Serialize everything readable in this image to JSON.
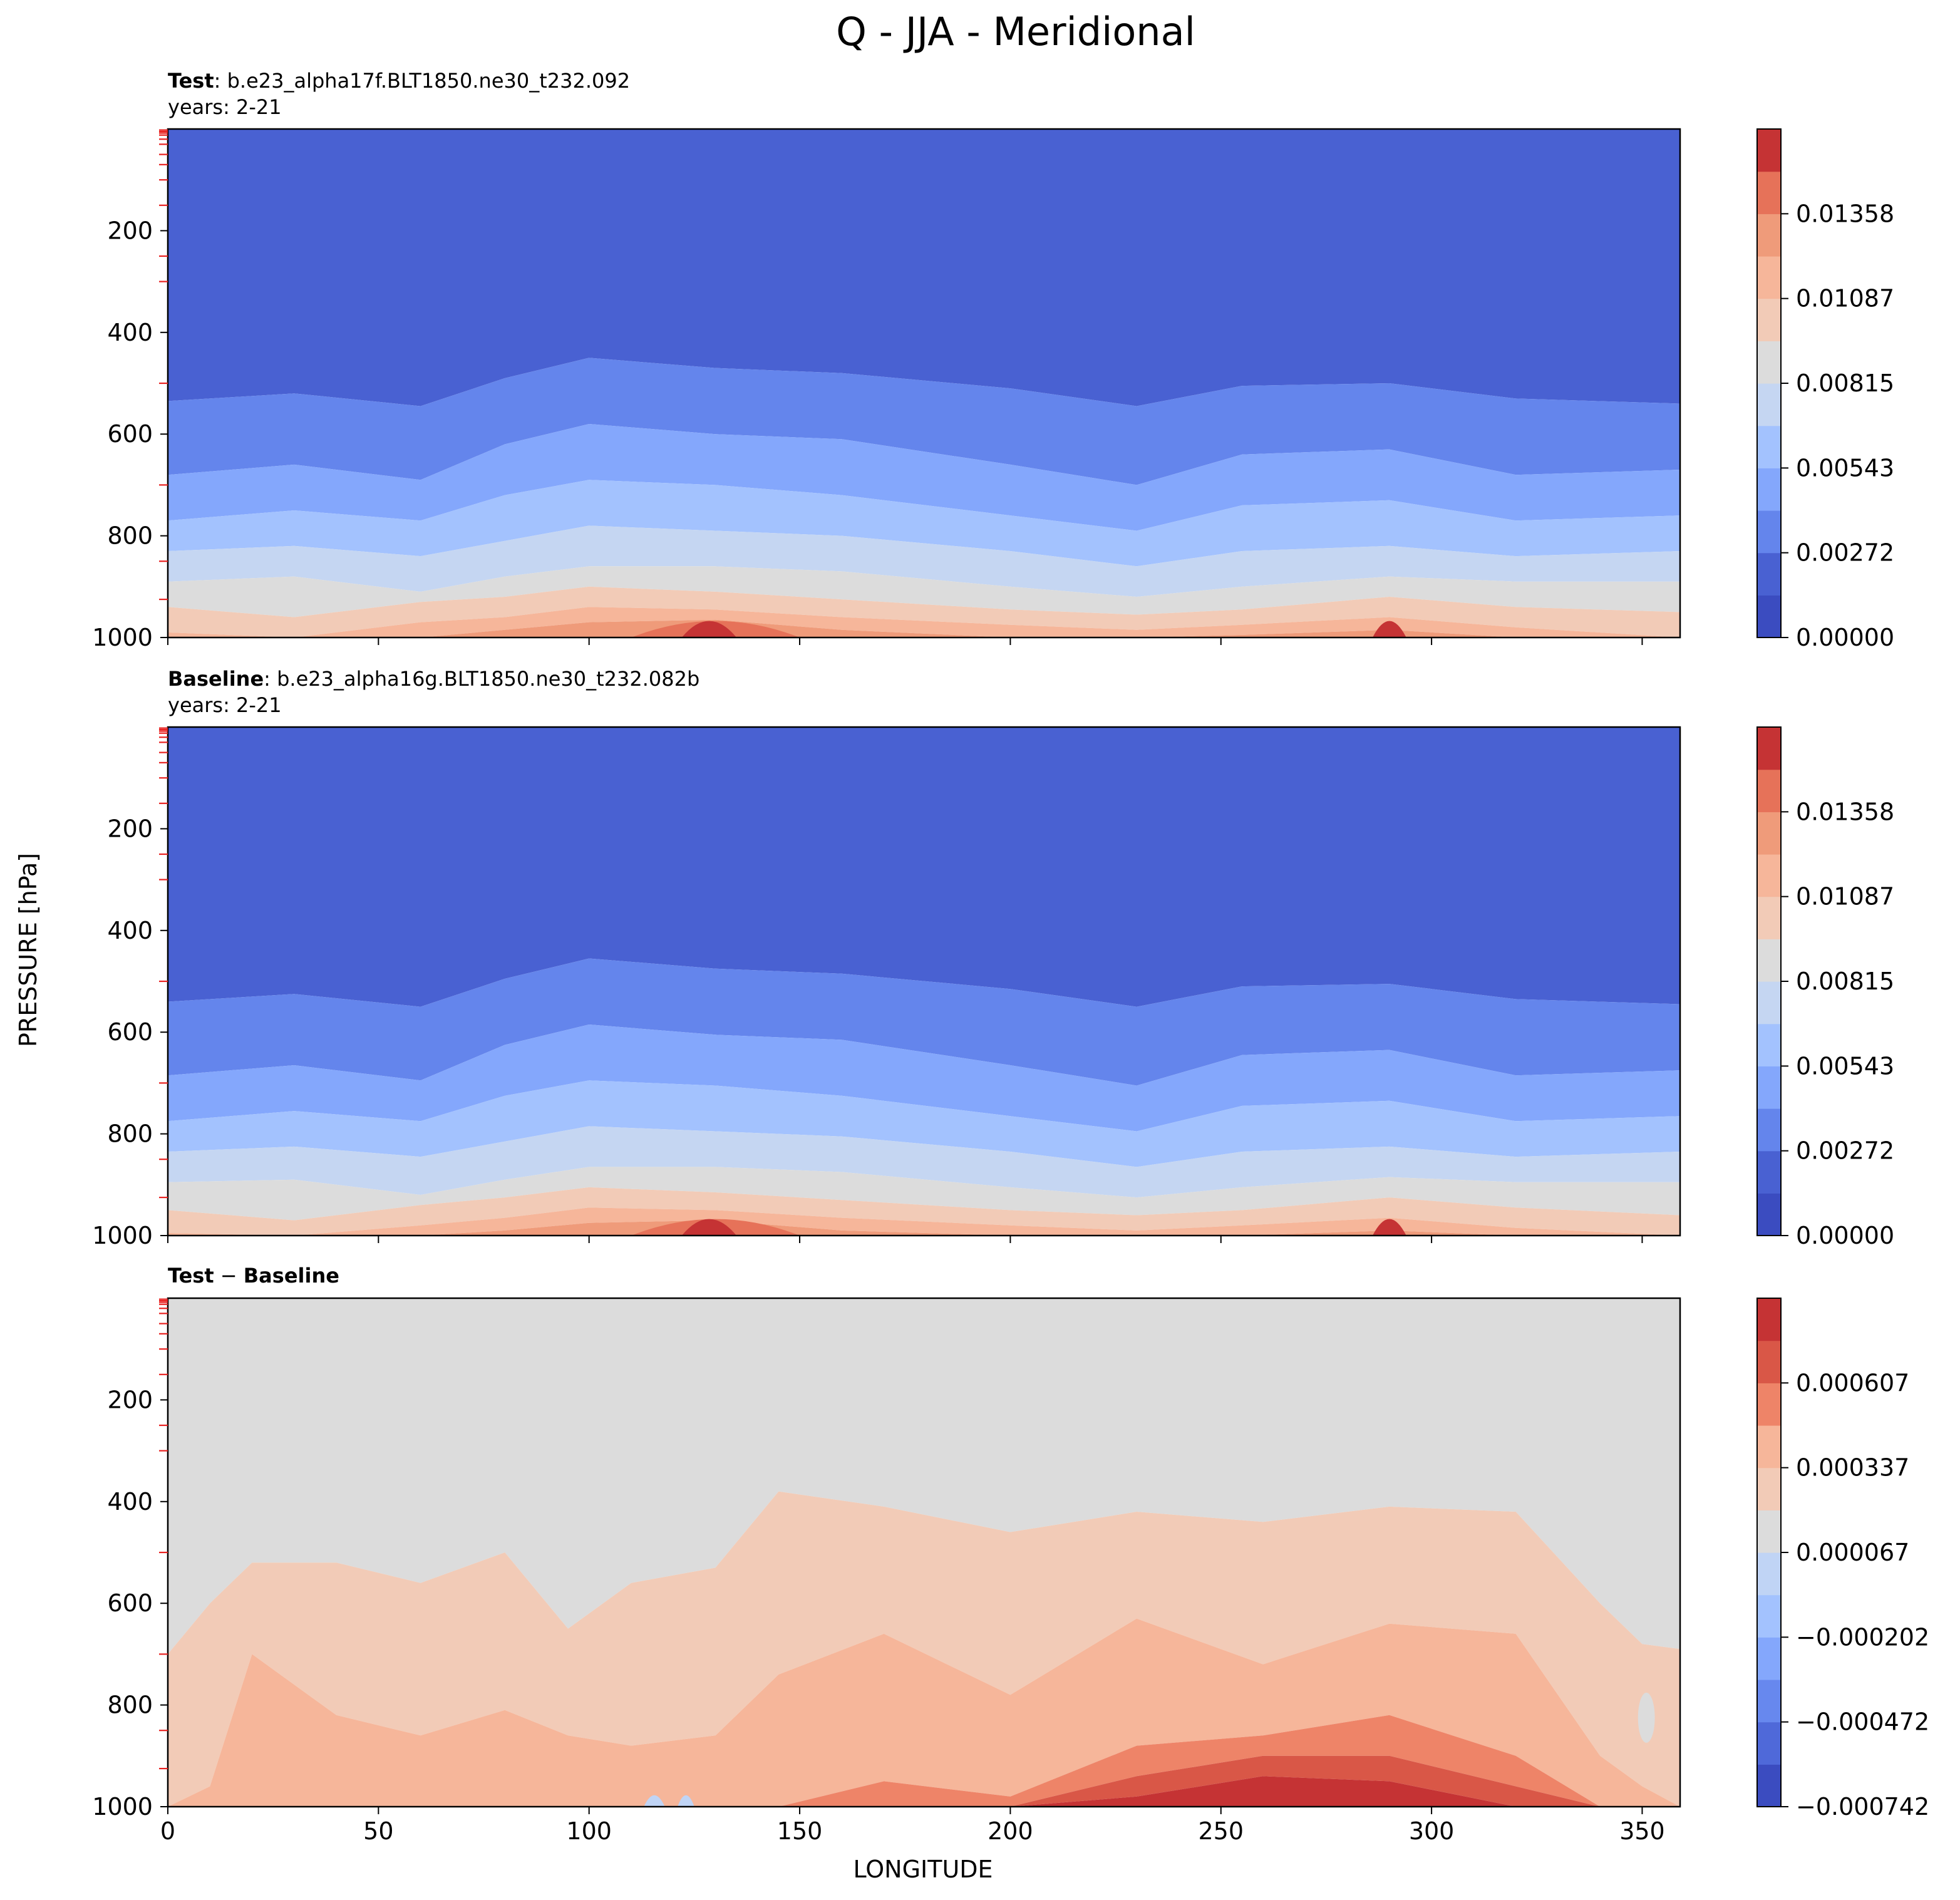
{
  "figure": {
    "title": "Q - JJA - Meridional",
    "ylabel": "PRESSURE [hPa]",
    "xlabel": "LONGITUDE"
  },
  "palette": {
    "blue_fill": "#4961D2",
    "gray": "#DCDCDC",
    "cmap_coolwarm": [
      "#3B4CC0",
      "#4F69D9",
      "#6788EE",
      "#84A7FC",
      "#A3C2FE",
      "#C0D4F5",
      "#DDDDDD",
      "#F2CBB7",
      "#F7B194",
      "#EE8468",
      "#DA5A49",
      "#B40426"
    ]
  },
  "chart_data": [
    {
      "type": "heatmap",
      "panel": "test",
      "title_bold": "Test",
      "title_rest": ": b.e23_alpha17f.BLT1850.ne30_t232.092",
      "subtitle": "years: 2-21",
      "xlim": [
        0,
        359
      ],
      "ylim": [
        1000,
        0
      ],
      "x_ticks": [
        "0",
        "50",
        "100",
        "150",
        "200",
        "250",
        "300",
        "350"
      ],
      "y_ticks": [
        "200",
        "400",
        "600",
        "800",
        "1000"
      ],
      "y_tick_values": [
        200,
        400,
        600,
        800,
        1000
      ],
      "colorbar": {
        "levels": [
          0.0,
          0.00136,
          0.00272,
          0.00408,
          0.00543,
          0.00679,
          0.00815,
          0.00951,
          0.01087,
          0.01222,
          0.01358,
          0.01494
        ],
        "tick_labels": [
          "0.00000",
          "0.00272",
          "0.00543",
          "0.00815",
          "0.01087",
          "0.01358"
        ]
      },
      "contour_boundaries_hPa_at_lon": {
        "lon": [
          0,
          30,
          60,
          80,
          100,
          130,
          160,
          200,
          230,
          255,
          290,
          320,
          359
        ],
        "b1": [
          535,
          520,
          545,
          490,
          450,
          470,
          480,
          510,
          545,
          505,
          500,
          530,
          540
        ],
        "b2": [
          680,
          660,
          690,
          620,
          580,
          600,
          610,
          660,
          700,
          640,
          630,
          680,
          670
        ],
        "b3": [
          770,
          750,
          770,
          720,
          690,
          700,
          720,
          760,
          790,
          740,
          730,
          770,
          760
        ],
        "b4": [
          830,
          820,
          840,
          810,
          780,
          790,
          800,
          830,
          860,
          830,
          820,
          840,
          830
        ],
        "b5": [
          890,
          880,
          910,
          880,
          860,
          860,
          870,
          900,
          920,
          900,
          880,
          890,
          890
        ],
        "b6": [
          940,
          960,
          930,
          920,
          900,
          910,
          925,
          945,
          955,
          945,
          920,
          940,
          950
        ],
        "b7": [
          990,
          1000,
          970,
          960,
          940,
          945,
          960,
          975,
          985,
          975,
          960,
          980,
          1000
        ],
        "b8": [
          1000,
          1000,
          1000,
          985,
          970,
          965,
          985,
          1000,
          1000,
          995,
          985,
          1000,
          1000
        ]
      }
    },
    {
      "type": "heatmap",
      "panel": "baseline",
      "title_bold": "Baseline",
      "title_rest": ": b.e23_alpha16g.BLT1850.ne30_t232.082b",
      "subtitle": "years: 2-21",
      "xlim": [
        0,
        359
      ],
      "ylim": [
        1000,
        0
      ],
      "x_ticks": [
        "0",
        "50",
        "100",
        "150",
        "200",
        "250",
        "300",
        "350"
      ],
      "y_ticks": [
        "200",
        "400",
        "600",
        "800",
        "1000"
      ],
      "y_tick_values": [
        200,
        400,
        600,
        800,
        1000
      ],
      "colorbar": {
        "levels": [
          0.0,
          0.00136,
          0.00272,
          0.00408,
          0.00543,
          0.00679,
          0.00815,
          0.00951,
          0.01087,
          0.01222,
          0.01358,
          0.01494
        ],
        "tick_labels": [
          "0.00000",
          "0.00272",
          "0.00543",
          "0.00815",
          "0.01087",
          "0.01358"
        ]
      },
      "contour_boundaries_hPa_at_lon": {
        "lon": [
          0,
          30,
          60,
          80,
          100,
          130,
          160,
          200,
          230,
          255,
          290,
          320,
          359
        ],
        "b1": [
          540,
          525,
          550,
          495,
          455,
          475,
          485,
          515,
          550,
          510,
          505,
          535,
          545
        ],
        "b2": [
          685,
          665,
          695,
          625,
          585,
          605,
          615,
          665,
          705,
          645,
          635,
          685,
          675
        ],
        "b3": [
          775,
          755,
          775,
          725,
          695,
          705,
          725,
          765,
          795,
          745,
          735,
          775,
          765
        ],
        "b4": [
          835,
          825,
          845,
          815,
          785,
          795,
          805,
          835,
          865,
          835,
          825,
          845,
          835
        ],
        "b5": [
          895,
          890,
          920,
          890,
          865,
          865,
          875,
          905,
          925,
          905,
          885,
          895,
          895
        ],
        "b6": [
          950,
          970,
          940,
          925,
          905,
          915,
          930,
          950,
          960,
          950,
          925,
          945,
          960
        ],
        "b7": [
          995,
          1000,
          980,
          965,
          945,
          950,
          965,
          980,
          990,
          980,
          965,
          985,
          1000
        ],
        "b8": [
          1000,
          1000,
          1000,
          990,
          975,
          970,
          990,
          1000,
          1000,
          1000,
          990,
          1000,
          1000
        ]
      }
    },
    {
      "type": "heatmap",
      "panel": "difference",
      "title_bold": "Test",
      "title_sep": " − ",
      "title_bold2": "Baseline",
      "xlim": [
        0,
        359
      ],
      "ylim": [
        1000,
        0
      ],
      "x_ticks": [
        "0",
        "50",
        "100",
        "150",
        "200",
        "250",
        "300",
        "350"
      ],
      "y_ticks": [
        "200",
        "400",
        "600",
        "800",
        "1000"
      ],
      "y_tick_values": [
        200,
        400,
        600,
        800,
        1000
      ],
      "colorbar": {
        "levels": [
          -0.000742,
          -0.000607,
          -0.000472,
          -0.000337,
          -0.000202,
          -6.7e-05,
          6.7e-05,
          0.000202,
          0.000337,
          0.000472,
          0.000607,
          0.000742
        ],
        "tick_labels": [
          "−0.000742",
          "−0.000472",
          "−0.000202",
          "0.000067",
          "0.000337",
          "0.000607"
        ]
      },
      "contour_boundaries_hPa_at_lon": {
        "lon": [
          0,
          10,
          20,
          40,
          60,
          80,
          95,
          110,
          130,
          145,
          170,
          200,
          230,
          260,
          290,
          320,
          340,
          350,
          359
        ],
        "d1": [
          700,
          600,
          520,
          520,
          560,
          500,
          650,
          560,
          530,
          380,
          410,
          460,
          420,
          440,
          410,
          420,
          600,
          680,
          690
        ],
        "d2": [
          1000,
          960,
          700,
          820,
          860,
          810,
          860,
          880,
          860,
          740,
          660,
          780,
          630,
          720,
          640,
          660,
          900,
          960,
          1000
        ],
        "d3": [
          1000,
          1000,
          1000,
          1000,
          1000,
          1000,
          1000,
          1000,
          1000,
          1000,
          950,
          980,
          880,
          860,
          820,
          900,
          1000,
          1000,
          1000
        ],
        "d4": [
          1000,
          1000,
          1000,
          1000,
          1000,
          1000,
          1000,
          1000,
          1000,
          1000,
          1000,
          1000,
          940,
          900,
          900,
          960,
          1000,
          1000,
          1000
        ],
        "d5": [
          1000,
          1000,
          1000,
          1000,
          1000,
          1000,
          1000,
          1000,
          1000,
          1000,
          1000,
          1000,
          980,
          940,
          950,
          1000,
          1000,
          1000,
          1000
        ]
      }
    }
  ]
}
